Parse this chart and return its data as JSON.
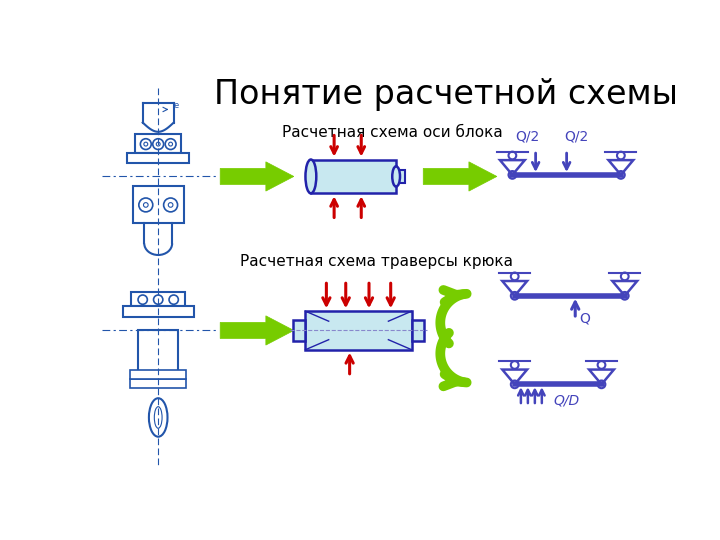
{
  "title": "Понятие расчетной схемы",
  "label_top": "Расчетная схема оси блока",
  "label_bottom": "Расчетная схема траверсы крюка",
  "bg_color": "#ffffff",
  "title_color": "#000000",
  "label_color": "#000000",
  "beam_color": "#2222aa",
  "beam_fill": "#c8e8f0",
  "arrow_color": "#cc0000",
  "support_color": "#4444bb",
  "big_arrow_color": "#77cc00",
  "force_color": "#4444bb",
  "q2_label": "Q/2",
  "q_label": "Q",
  "qd_label": "Q/D"
}
